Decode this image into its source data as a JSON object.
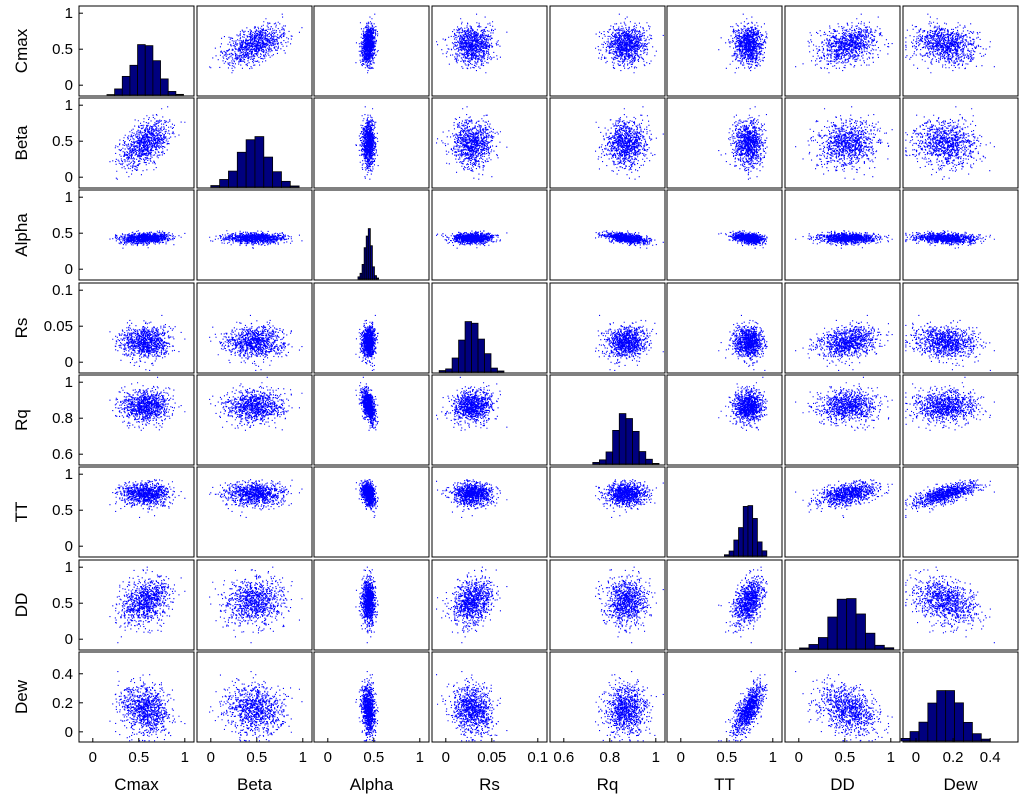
{
  "chart_data": {
    "type": "scatter_matrix",
    "variables": [
      "Cmax",
      "Beta",
      "Alpha",
      "Rs",
      "Rq",
      "TT",
      "DD",
      "Dew"
    ],
    "axes": {
      "Cmax": {
        "range": [
          -0.15,
          1.1
        ],
        "ticks": [
          0,
          0.5,
          1
        ],
        "tick_labels": [
          "0",
          "0.5",
          "1"
        ]
      },
      "Beta": {
        "range": [
          -0.15,
          1.1
        ],
        "ticks": [
          0,
          0.5,
          1
        ],
        "tick_labels": [
          "0",
          "0.5",
          "1"
        ]
      },
      "Alpha": {
        "range": [
          -0.15,
          1.1
        ],
        "ticks": [
          0,
          0.5,
          1
        ],
        "tick_labels": [
          "0",
          "0.5",
          "1"
        ]
      },
      "Rs": {
        "range": [
          -0.015,
          0.11
        ],
        "ticks": [
          0,
          0.05,
          0.1
        ],
        "tick_labels": [
          "0",
          "0.05",
          "0.1"
        ]
      },
      "Rq": {
        "range": [
          0.54,
          1.04
        ],
        "ticks": [
          0.6,
          0.8,
          1
        ],
        "tick_labels": [
          "0.6",
          "0.8",
          "1"
        ]
      },
      "TT": {
        "range": [
          -0.15,
          1.1
        ],
        "ticks": [
          0,
          0.5,
          1
        ],
        "tick_labels": [
          "0",
          "0.5",
          "1"
        ]
      },
      "DD": {
        "range": [
          -0.15,
          1.1
        ],
        "ticks": [
          0,
          0.5,
          1
        ],
        "tick_labels": [
          "0",
          "0.5",
          "1"
        ]
      },
      "Dew": {
        "range": [
          -0.07,
          0.55
        ],
        "ticks": [
          0,
          0.2,
          0.4
        ],
        "tick_labels": [
          "0",
          "0.2",
          "0.4"
        ]
      }
    },
    "x_tick_labels": {
      "Cmax": [
        "0",
        "0.5",
        "1"
      ],
      "Beta": [
        "0",
        "0.5",
        "1"
      ],
      "Alpha": [
        "0",
        "0.5",
        "1"
      ],
      "Rs": [
        "0",
        "0.05",
        "0.1"
      ],
      "Rq": [
        "0.6",
        "0.8",
        "1"
      ],
      "TT": [
        "0",
        "0.5",
        "1"
      ],
      "DD": [
        "0",
        "0.5",
        "1"
      ],
      "Dew": [
        "0",
        "0.2",
        "0.4"
      ]
    },
    "y_tick_labels": {
      "Cmax": [
        "0",
        "0.5",
        "1"
      ],
      "Beta": [
        "0",
        "0.5",
        "1"
      ],
      "Alpha": [
        "0",
        "0.5",
        "1"
      ],
      "Rs": [
        "0",
        "0.05",
        "0.1"
      ],
      "Rq": [
        "0.6",
        "0.8",
        "1"
      ],
      "TT": [
        "0",
        "0.5",
        "1"
      ],
      "DD": [
        "0",
        "0.5",
        "1"
      ],
      "Dew": [
        "0",
        "0.2",
        "0.4"
      ]
    },
    "distribution": {
      "means": [
        0.57,
        0.48,
        0.44,
        0.028,
        0.87,
        0.73,
        0.52,
        0.16
      ],
      "sds": [
        0.13,
        0.15,
        0.035,
        0.011,
        0.045,
        0.08,
        0.16,
        0.075
      ],
      "correlation": [
        [
          1.0,
          0.5,
          0.2,
          0.0,
          0.0,
          0.0,
          0.3,
          -0.2
        ],
        [
          0.5,
          1.0,
          0.0,
          0.0,
          0.0,
          0.0,
          0.1,
          -0.1
        ],
        [
          0.2,
          0.0,
          1.0,
          0.0,
          -0.5,
          -0.3,
          0.0,
          -0.2
        ],
        [
          0.0,
          0.0,
          0.0,
          1.0,
          0.1,
          0.0,
          0.3,
          -0.2
        ],
        [
          0.0,
          0.0,
          -0.5,
          0.1,
          1.0,
          0.0,
          0.0,
          0.0
        ],
        [
          0.0,
          0.0,
          -0.3,
          0.0,
          0.0,
          1.0,
          0.4,
          0.8
        ],
        [
          0.3,
          0.1,
          0.0,
          0.3,
          0.0,
          0.4,
          1.0,
          -0.4
        ],
        [
          -0.2,
          -0.1,
          -0.2,
          -0.2,
          0.0,
          0.8,
          -0.4,
          1.0
        ]
      ]
    },
    "n_points": 1000,
    "point_color": "#0000ff",
    "hist_bins": 10,
    "hist_fill": "#00007f",
    "hist_edge": "#000000",
    "grid": false
  }
}
